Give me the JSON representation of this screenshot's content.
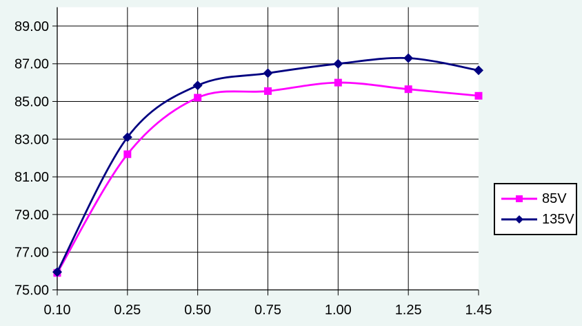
{
  "chart_data": {
    "type": "line",
    "title": "",
    "xlabel": "",
    "ylabel": "",
    "categories": [
      "0.10",
      "0.25",
      "0.50",
      "0.75",
      "1.00",
      "1.25",
      "1.45"
    ],
    "series": [
      {
        "name": "85V",
        "color": "#FF00FF",
        "marker": "square",
        "values": [
          75.9,
          82.2,
          85.2,
          85.55,
          86.0,
          85.65,
          85.3
        ]
      },
      {
        "name": "135V",
        "color": "#000080",
        "marker": "diamond",
        "values": [
          75.95,
          83.1,
          85.85,
          86.5,
          87.0,
          87.3,
          86.65
        ]
      }
    ],
    "y_ticks": [
      "75.00",
      "77.00",
      "79.00",
      "81.00",
      "83.00",
      "85.00",
      "87.00",
      "89.00"
    ],
    "ylim": [
      75,
      90
    ],
    "y_step": 2,
    "grid": true,
    "smoothed_lines": true,
    "legend_position": "right-middle"
  },
  "style": {
    "page_background": "#EDF6F4",
    "plot_background": "#FFFFFF",
    "gridline_color": "#000000",
    "axis_color": "#000000",
    "text_color": "#000000",
    "legend_background": "#FFFFFF",
    "legend_border_color": "#000000"
  }
}
